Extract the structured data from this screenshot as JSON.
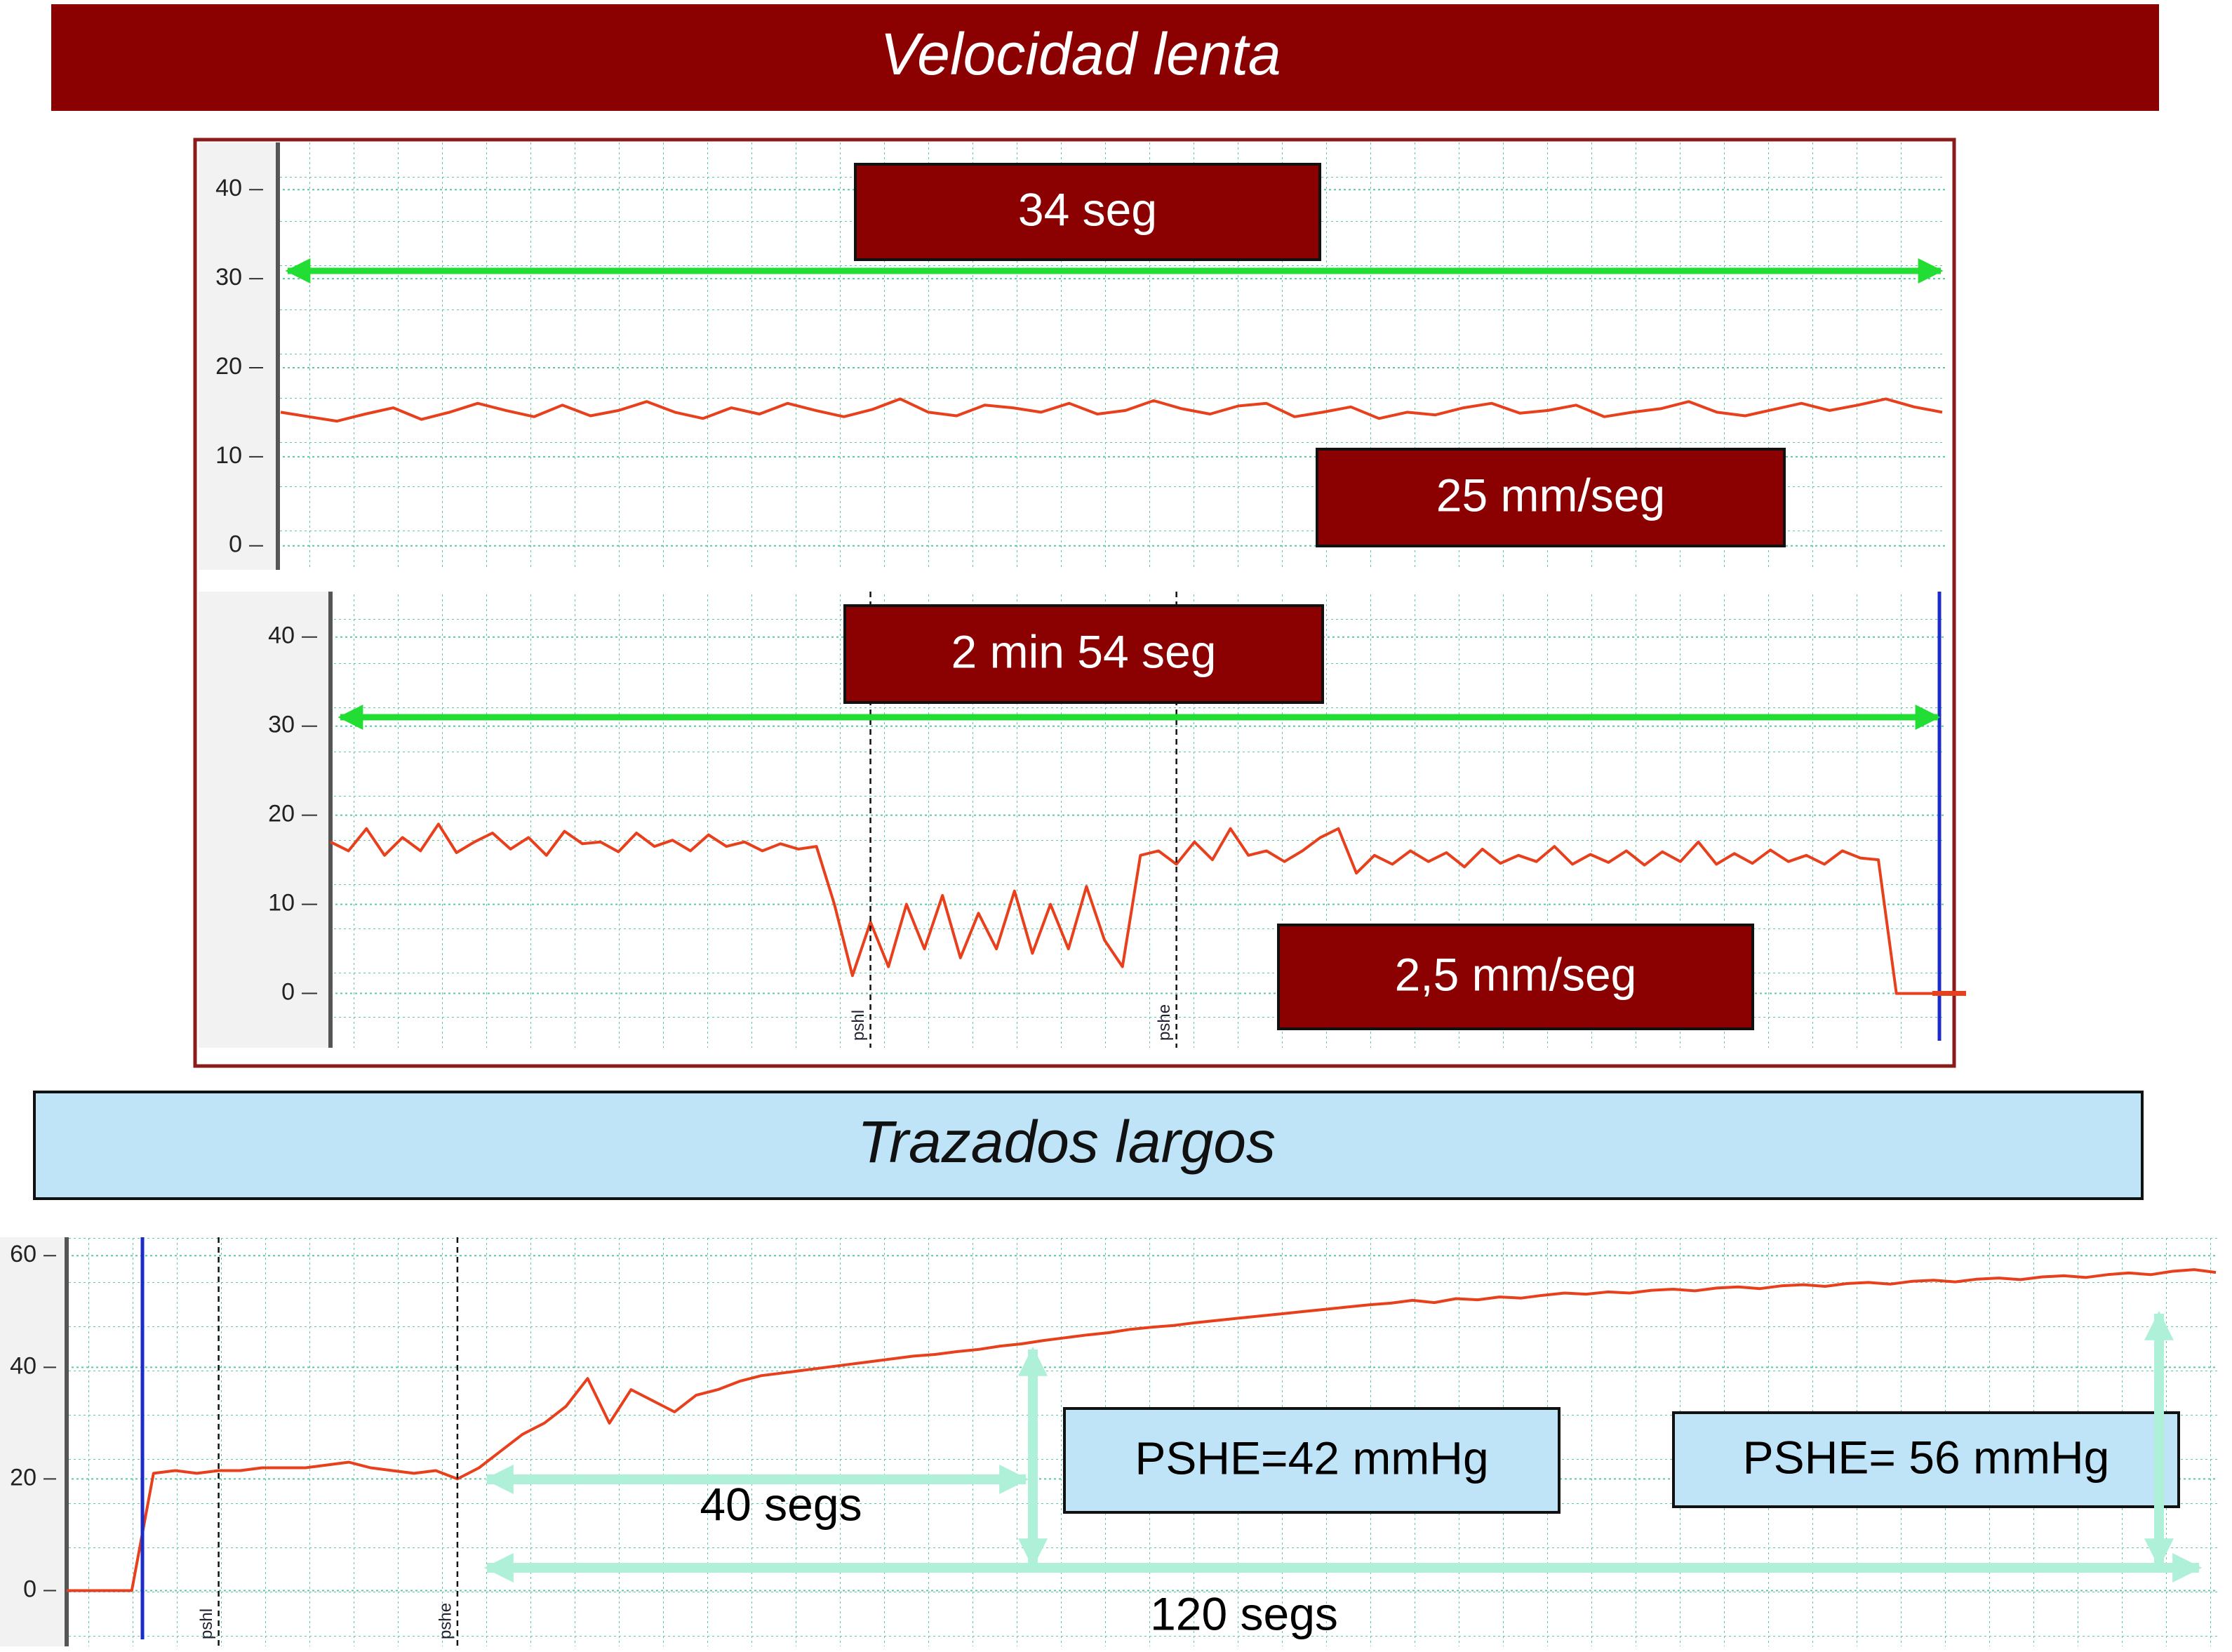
{
  "section_titles": [
    "Velocidad lenta",
    "Trazados largos"
  ],
  "chart_data": [
    {
      "type": "line",
      "ylim": [
        -2.7,
        45.3
      ],
      "yticks": [
        0,
        10,
        20,
        30,
        40
      ],
      "grid": true,
      "color": "#e8401c",
      "annotations": [
        "34 seg",
        "25 mm/seg"
      ],
      "values": [
        15,
        14.5,
        14,
        14.8,
        15.5,
        14.2,
        15,
        16,
        15.2,
        14.5,
        15.8,
        14.6,
        15.2,
        16.2,
        15,
        14.3,
        15.5,
        14.8,
        16,
        15.2,
        14.5,
        15.3,
        16.5,
        15,
        14.6,
        15.8,
        15.5,
        15,
        16,
        14.8,
        15.2,
        16.3,
        15.4,
        14.8,
        15.7,
        16,
        14.5,
        15,
        15.6,
        14.3,
        15,
        14.7,
        15.5,
        16,
        14.9,
        15.2,
        15.8,
        14.5,
        15,
        15.4,
        16.2,
        15,
        14.6,
        15.3,
        16,
        15.2,
        15.8,
        16.5,
        15.6,
        15
      ]
    },
    {
      "type": "line",
      "ylim": [
        -6.1,
        45.1
      ],
      "yticks": [
        0,
        10,
        20,
        30,
        40
      ],
      "grid": true,
      "color": "#e8401c",
      "annotations": [
        "2 min 54 seg",
        "2,5 mm/seg"
      ],
      "categories": [
        null,
        null,
        null,
        null,
        null,
        null,
        null,
        null,
        null,
        null,
        null,
        null,
        null,
        null,
        null,
        null,
        null,
        null,
        null,
        null,
        null,
        null,
        null,
        null,
        null,
        null,
        null,
        null,
        null,
        null,
        "pshl",
        null,
        null,
        null,
        null,
        null,
        null,
        null,
        null,
        null,
        null,
        null,
        null,
        null,
        null,
        null,
        null,
        "pshe",
        null,
        null,
        null,
        null,
        null,
        null,
        null,
        null,
        null,
        null,
        null,
        null,
        null,
        null,
        null,
        null,
        null,
        null,
        null,
        null,
        null,
        null,
        null,
        null,
        null,
        null,
        null,
        null,
        null,
        null,
        null,
        null,
        null,
        null,
        null,
        null,
        null,
        null,
        null,
        null,
        null,
        null
      ],
      "values": [
        17,
        16,
        18.5,
        15.5,
        17.5,
        16,
        19,
        15.8,
        17,
        18,
        16.2,
        17.5,
        15.5,
        18.2,
        16.8,
        17,
        15.9,
        18,
        16.5,
        17.2,
        16,
        17.8,
        16.5,
        17,
        16,
        16.8,
        16.2,
        16.5,
        10,
        2,
        8,
        3,
        10,
        5,
        11,
        4,
        9,
        5,
        11.5,
        4.5,
        10,
        5,
        12,
        6,
        3,
        15.5,
        16,
        14.5,
        17,
        15,
        18.5,
        15.5,
        16,
        14.8,
        16,
        17.5,
        18.5,
        13.5,
        15.5,
        14.5,
        16,
        14.8,
        15.8,
        14.2,
        16.2,
        14.6,
        15.5,
        14.8,
        16.5,
        14.5,
        15.6,
        14.7,
        16,
        14.4,
        15.9,
        14.8,
        17,
        14.5,
        15.7,
        14.6,
        16.1,
        14.8,
        15.5,
        14.5,
        16,
        15.2,
        15,
        0,
        0,
        0
      ]
    },
    {
      "type": "line",
      "ylim": [
        -10,
        63.3
      ],
      "yticks": [
        0,
        20,
        40,
        60
      ],
      "grid": true,
      "color": "#e8401c",
      "annotations": [
        "PSHE=42 mmHg",
        "PSHE= 56 mmHg",
        "40 segs",
        "120 segs"
      ],
      "categories": [
        null,
        null,
        null,
        null,
        null,
        null,
        null,
        "pshl",
        null,
        null,
        null,
        null,
        null,
        null,
        null,
        null,
        null,
        null,
        "pshe",
        null,
        null,
        null,
        null,
        null,
        null,
        null,
        null,
        null,
        null,
        null,
        null,
        null,
        null,
        null,
        null,
        null,
        null,
        null,
        null,
        null,
        null,
        null,
        null,
        null,
        null,
        null,
        null,
        null,
        null,
        null,
        null,
        null,
        null,
        null,
        null,
        null,
        null,
        null,
        null,
        null,
        null,
        null,
        null,
        null,
        null,
        null,
        null,
        null,
        null,
        null,
        null,
        null,
        null,
        null,
        null,
        null,
        null,
        null,
        null,
        null,
        null,
        null,
        null,
        null,
        null,
        null,
        null,
        null,
        null,
        null,
        null,
        null,
        null,
        null,
        null,
        null,
        null,
        null,
        null,
        null
      ],
      "values": [
        0,
        0,
        0,
        0,
        21,
        21.5,
        21,
        21.5,
        21.5,
        22,
        22,
        22,
        22.5,
        23,
        22,
        21.5,
        21,
        21.5,
        20,
        22,
        25,
        28,
        30,
        33,
        38,
        30,
        36,
        34,
        32,
        35,
        36,
        37.5,
        38.5,
        39,
        39.5,
        40,
        40.5,
        41,
        41.5,
        42,
        42.3,
        42.8,
        43.2,
        43.8,
        44.2,
        44.8,
        45.3,
        45.8,
        46.2,
        46.8,
        47.2,
        47.5,
        48,
        48.4,
        48.8,
        49.2,
        49.6,
        50,
        50.4,
        50.8,
        51.2,
        51.5,
        52,
        51.6,
        52.3,
        52.1,
        52.6,
        52.4,
        52.9,
        53.3,
        53.1,
        53.5,
        53.3,
        53.8,
        54,
        53.7,
        54.2,
        54.4,
        54.1,
        54.6,
        54.8,
        54.5,
        55,
        55.2,
        54.9,
        55.4,
        55.6,
        55.3,
        55.8,
        56,
        55.7,
        56.2,
        56.4,
        56.1,
        56.6,
        56.9,
        56.6,
        57.2,
        57.5,
        57
      ]
    }
  ]
}
